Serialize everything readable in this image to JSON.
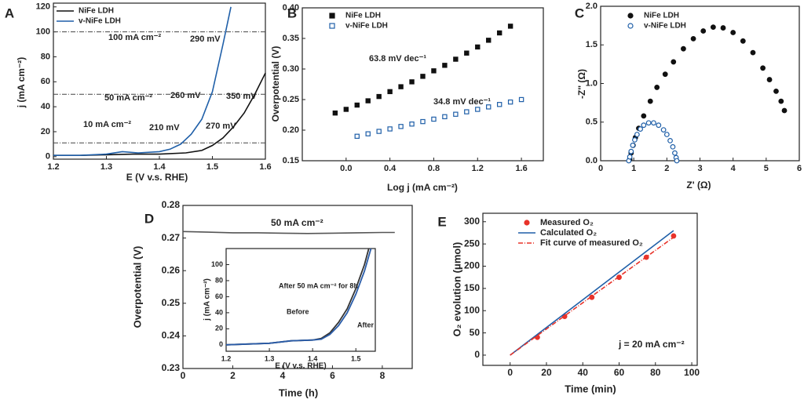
{
  "chart_data": [
    {
      "type": "line",
      "label": "A",
      "xlabel": "E (V v.s. RHE)",
      "ylabel": "j (mA cm⁻²)",
      "xlim": [
        1.2,
        1.6
      ],
      "xticks": [
        1.2,
        1.3,
        1.4,
        1.5,
        1.6
      ],
      "ylim": [
        -2,
        123
      ],
      "yticks": [
        0,
        20,
        40,
        60,
        80,
        100,
        120
      ],
      "legend": "upper left",
      "hlines": [
        100,
        50,
        11
      ],
      "hline_color": "#444444",
      "series": [
        {
          "name": "NiFe LDH",
          "color": "#111111",
          "style": "solid",
          "x": [
            1.2,
            1.25,
            1.3,
            1.35,
            1.4,
            1.45,
            1.48,
            1.5,
            1.52,
            1.54,
            1.56,
            1.58,
            1.6
          ],
          "values": [
            1,
            1,
            1.5,
            2,
            2,
            3,
            5,
            9,
            15,
            24,
            35,
            50,
            67
          ]
        },
        {
          "name": "v-NiFe LDH",
          "color": "#1f5fa8",
          "style": "solid",
          "x": [
            1.2,
            1.25,
            1.3,
            1.33,
            1.36,
            1.4,
            1.42,
            1.44,
            1.46,
            1.48,
            1.5,
            1.52,
            1.535
          ],
          "values": [
            1,
            1,
            2,
            4,
            3,
            4,
            6,
            10,
            18,
            30,
            52,
            90,
            120
          ]
        }
      ],
      "annotations": [
        {
          "text": "100 mA cm⁻²",
          "color": "#e0177a"
        },
        {
          "text": "290 mV",
          "color": "#1f5fa8"
        },
        {
          "text": "50 mA cm⁻²",
          "color": "#e0177a"
        },
        {
          "text": "260 mV",
          "color": "#1f5fa8"
        },
        {
          "text": "350 mV",
          "color": "#111111"
        },
        {
          "text": "10 mA cm⁻²",
          "color": "#e0177a"
        },
        {
          "text": "210 mV",
          "color": "#1f5fa8"
        },
        {
          "text": "270 mV",
          "color": "#111111"
        }
      ]
    },
    {
      "type": "scatter",
      "label": "B",
      "xlabel": "Log j (mA cm⁻²)",
      "ylabel": "Overpotential (V)",
      "xlim": [
        -0.4,
        1.8
      ],
      "xticks": [
        {
          "value": 0,
          "label": "0.0"
        },
        0.4,
        0.8,
        1.2,
        1.6
      ],
      "ylim": [
        0.15,
        0.4
      ],
      "yticks": [
        0.15,
        {
          "value": 0.2,
          "label": "0.20"
        },
        0.25,
        {
          "value": 0.3,
          "label": "0.30"
        },
        0.35,
        {
          "value": 0.4,
          "label": "0.40"
        }
      ],
      "legend": "upper left",
      "series": [
        {
          "name": "NiFe LDH",
          "color": "#111111",
          "style": "filled-square",
          "x": [
            -0.1,
            0,
            0.1,
            0.2,
            0.3,
            0.4,
            0.5,
            0.6,
            0.7,
            0.8,
            0.9,
            1.0,
            1.1,
            1.2,
            1.3,
            1.4,
            1.5
          ],
          "values": [
            0.228,
            0.234,
            0.241,
            0.248,
            0.255,
            0.263,
            0.271,
            0.279,
            0.288,
            0.297,
            0.306,
            0.316,
            0.326,
            0.336,
            0.347,
            0.359,
            0.37
          ]
        },
        {
          "name": "v-NiFe LDH",
          "color": "#1f5fa8",
          "style": "open-square",
          "x": [
            0.1,
            0.2,
            0.3,
            0.4,
            0.5,
            0.6,
            0.7,
            0.8,
            0.9,
            1.0,
            1.1,
            1.2,
            1.3,
            1.4,
            1.5,
            1.6
          ],
          "values": [
            0.19,
            0.194,
            0.198,
            0.202,
            0.206,
            0.21,
            0.214,
            0.218,
            0.222,
            0.226,
            0.23,
            0.234,
            0.238,
            0.242,
            0.246,
            0.25
          ]
        }
      ],
      "annotations": [
        {
          "text": "63.8 mV dec⁻¹",
          "color": "#111111"
        },
        {
          "text": "34.8 mV dec⁻¹",
          "color": "#1f5fa8"
        }
      ]
    },
    {
      "type": "scatter",
      "label": "C",
      "xlabel": "Z' (Ω)",
      "ylabel": "-Z'' (Ω)",
      "xlim": [
        0,
        6
      ],
      "xticks": [
        0,
        1,
        2,
        3,
        4,
        5,
        6
      ],
      "ylim": [
        0,
        2
      ],
      "yticks": [
        {
          "value": 0,
          "label": "0.0"
        },
        0.5,
        {
          "value": 1,
          "label": "1.0"
        },
        1.5,
        {
          "value": 2,
          "label": "2.0"
        }
      ],
      "legend": "upper left",
      "series": [
        {
          "name": "NiFe LDH",
          "color": "#111111",
          "style": "filled-circle",
          "x": [
            0.88,
            0.92,
            0.98,
            1.05,
            1.15,
            1.3,
            1.5,
            1.7,
            1.95,
            2.2,
            2.5,
            2.8,
            3.1,
            3.4,
            3.7,
            4.0,
            4.3,
            4.6,
            4.9,
            5.1,
            5.3,
            5.45,
            5.55
          ],
          "values": [
            0.02,
            0.1,
            0.2,
            0.3,
            0.42,
            0.58,
            0.77,
            0.95,
            1.12,
            1.28,
            1.45,
            1.58,
            1.68,
            1.73,
            1.72,
            1.66,
            1.55,
            1.4,
            1.2,
            1.05,
            0.9,
            0.77,
            0.65
          ]
        },
        {
          "name": "v-NiFe LDH",
          "color": "#1f5fa8",
          "style": "open-circle",
          "x": [
            0.85,
            0.88,
            0.92,
            0.97,
            1.03,
            1.1,
            1.2,
            1.3,
            1.45,
            1.6,
            1.75,
            1.9,
            2.0,
            2.1,
            2.18,
            2.24,
            2.28,
            2.3
          ],
          "values": [
            0,
            0.05,
            0.12,
            0.2,
            0.27,
            0.34,
            0.41,
            0.46,
            0.49,
            0.49,
            0.46,
            0.4,
            0.34,
            0.26,
            0.18,
            0.1,
            0.04,
            0
          ]
        }
      ]
    },
    {
      "type": "line",
      "label": "D",
      "xlabel": "Time (h)",
      "ylabel": "Overpotential (V)",
      "xlim": [
        0,
        9.2
      ],
      "xticks": [
        0,
        2,
        4,
        6,
        8
      ],
      "ylim": [
        0.23,
        0.28
      ],
      "yticks": [
        0.23,
        0.24,
        0.25,
        0.26,
        0.27,
        0.28
      ],
      "series": [
        {
          "color": "#555555",
          "style": "solid",
          "x": [
            0,
            1,
            2,
            3,
            4,
            5,
            6,
            7,
            8,
            8.5
          ],
          "values": [
            0.272,
            0.2718,
            0.2716,
            0.2716,
            0.2715,
            0.2714,
            0.2715,
            0.2716,
            0.2717,
            0.2717
          ]
        }
      ],
      "annotations": [
        {
          "text": "50 mA cm⁻²",
          "color": "#111111"
        }
      ],
      "inset": {
        "type": "line",
        "xlabel": "E (V v.s. RHE)",
        "ylabel": "j (mA cm⁻²)",
        "xlim": [
          1.2,
          1.545
        ],
        "xticks": [
          1.2,
          1.3,
          1.4,
          1.5
        ],
        "ylim": [
          -8,
          120
        ],
        "yticks": [
          0,
          20,
          40,
          60,
          80,
          100
        ],
        "series": [
          {
            "color": "#333333",
            "style": "solid",
            "x": [
              1.2,
              1.3,
              1.35,
              1.4,
              1.42,
              1.44,
              1.46,
              1.48,
              1.5,
              1.52,
              1.53
            ],
            "values": [
              0,
              2,
              5,
              6,
              8,
              15,
              28,
              45,
              70,
              100,
              120
            ]
          },
          {
            "color": "#2a5ca8",
            "style": "solid",
            "x": [
              1.2,
              1.3,
              1.35,
              1.4,
              1.42,
              1.44,
              1.46,
              1.48,
              1.5,
              1.52,
              1.535
            ],
            "values": [
              0,
              2,
              5,
              6,
              7,
              13,
              24,
              40,
              63,
              92,
              120
            ]
          }
        ],
        "annotations": [
          {
            "text": "After 50 mA cm⁻² for 8h",
            "color": "#111111"
          },
          {
            "text": "Before",
            "color": "#111111"
          },
          {
            "text": "After",
            "color": "#111111"
          }
        ]
      }
    },
    {
      "type": "line",
      "label": "E",
      "xlabel": "Time (min)",
      "ylabel": "O₂ evolution (μmol)",
      "xlim": [
        -15,
        103
      ],
      "xticks": [
        0,
        20,
        40,
        60,
        80,
        100
      ],
      "ylim": [
        -23,
        319
      ],
      "yticks": [
        0,
        50,
        100,
        150,
        200,
        250,
        300
      ],
      "legend": "upper left",
      "series": [
        {
          "name": "Measured O₂",
          "color": "#e8332a",
          "style": "filled-circle",
          "x": [
            15,
            30,
            45,
            60,
            75,
            90
          ],
          "values": [
            40,
            87,
            130,
            175,
            220,
            268
          ]
        },
        {
          "name": "Calculated O₂",
          "color": "#1f5fa8",
          "style": "solid",
          "x": [
            0,
            90
          ],
          "values": [
            0,
            280
          ]
        },
        {
          "name": "Fit curve of measured O₂",
          "color": "#e8332a",
          "style": "dash-dot",
          "x": [
            0,
            90
          ],
          "values": [
            0,
            265
          ]
        }
      ],
      "annotations": [
        {
          "text": "j = 20 mA cm⁻²",
          "color": "#111111"
        }
      ]
    }
  ]
}
